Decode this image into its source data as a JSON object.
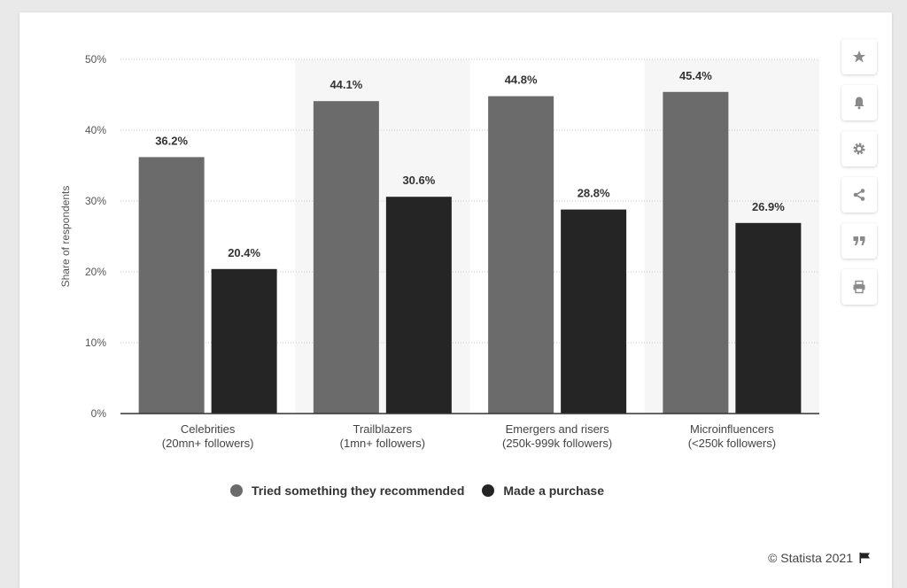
{
  "chart_data": {
    "type": "bar",
    "categories": [
      [
        "Celebrities",
        "(20mn+ followers)"
      ],
      [
        "Trailblazers",
        "(1mn+ followers)"
      ],
      [
        "Emergers and risers",
        "(250k-999k followers)"
      ],
      [
        "Microinfluencers",
        "(<250k followers)"
      ]
    ],
    "series": [
      {
        "name": "Tried something they recommended",
        "values": [
          36.2,
          44.1,
          44.8,
          45.4
        ],
        "labels": [
          "36.2%",
          "44.1%",
          "44.8%",
          "45.4%"
        ],
        "color": "#6b6b6b"
      },
      {
        "name": "Made a purchase",
        "values": [
          20.4,
          30.6,
          28.8,
          26.9
        ],
        "labels": [
          "20.4%",
          "30.6%",
          "28.8%",
          "26.9%"
        ],
        "color": "#252525"
      }
    ],
    "ylabel": "Share of respondents",
    "ylim": [
      0,
      50
    ],
    "yticks": [
      "0%",
      "10%",
      "20%",
      "30%",
      "40%",
      "50%"
    ],
    "grid": "horizontal dotted",
    "legend": "bottom-center"
  },
  "legend": {
    "item1": "Tried something they recommended",
    "item2": "Made a purchase",
    "color1": "#6b6b6b",
    "color2": "#252525"
  },
  "toolbar": {
    "icons": [
      "star-icon",
      "bell-icon",
      "gear-icon",
      "share-icon",
      "quote-icon",
      "print-icon"
    ]
  },
  "footer": {
    "credit": "© Statista 2021"
  }
}
